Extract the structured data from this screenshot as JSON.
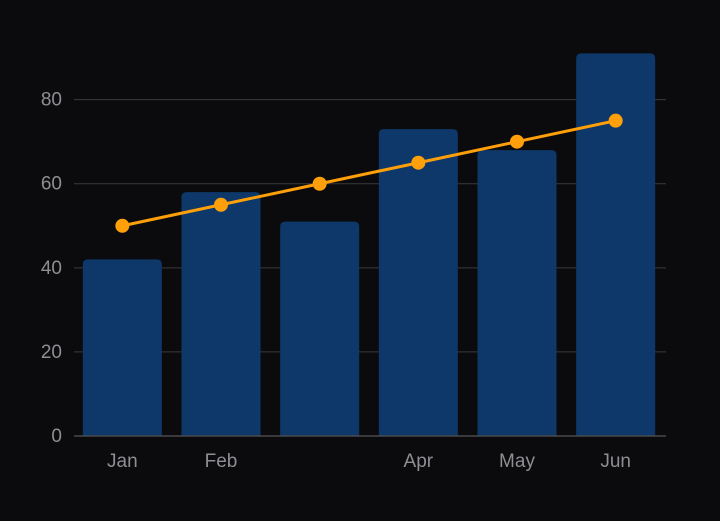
{
  "chart_data": {
    "type": "bar",
    "categories": [
      "Jan",
      "Feb",
      "",
      "Apr",
      "May",
      "Jun"
    ],
    "series": [
      {
        "type": "bar",
        "values": [
          42,
          58,
          51,
          73,
          68,
          91
        ],
        "color": "#0d3869"
      },
      {
        "type": "line",
        "values": [
          50,
          55,
          60,
          65,
          70,
          75
        ],
        "color": "#ff9f0a"
      }
    ],
    "ylim": [
      0,
      93
    ],
    "yticks": [
      0,
      20,
      40,
      60,
      80
    ],
    "title": "",
    "xlabel": "",
    "ylabel": "",
    "grid": true,
    "colors": {
      "background": "#0b0b0d",
      "grid": "#3a3a3c",
      "axis": "#4a4a4c",
      "tick_label": "#8e8e93"
    }
  }
}
